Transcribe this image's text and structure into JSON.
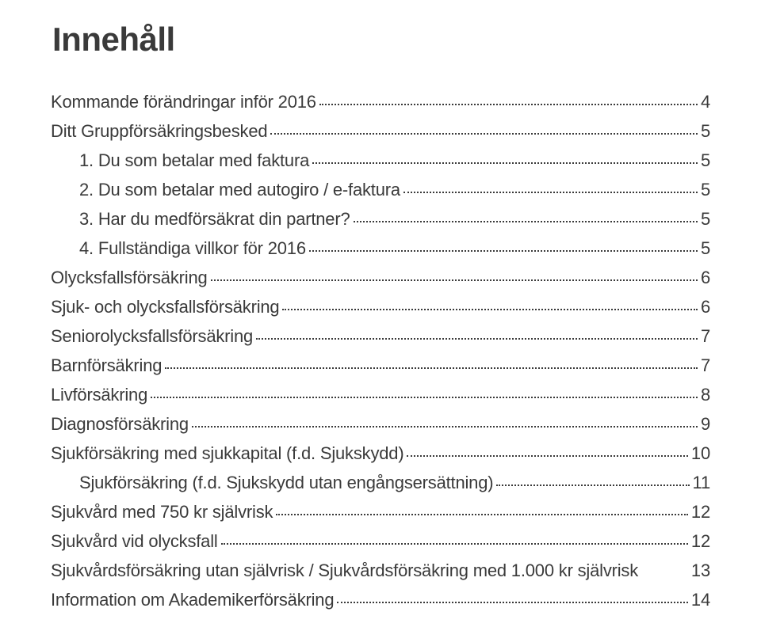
{
  "title": "Innehåll",
  "toc": [
    {
      "label": "Kommande förändringar inför 2016",
      "page": "4",
      "indent": 0,
      "leader": true
    },
    {
      "label": "Ditt Gruppförsäkringsbesked",
      "page": "5",
      "indent": 0,
      "leader": true
    },
    {
      "label": "1. Du som betalar med faktura",
      "page": "5",
      "indent": 1,
      "leader": true
    },
    {
      "label": "2. Du som betalar med autogiro / e-faktura",
      "page": "5",
      "indent": 1,
      "leader": true
    },
    {
      "label": "3. Har du medförsäkrat din partner?",
      "page": "5",
      "indent": 1,
      "leader": true
    },
    {
      "label": "4. Fullständiga villkor för 2016",
      "page": "5",
      "indent": 1,
      "leader": true
    },
    {
      "label": "Olycksfallsförsäkring",
      "page": "6",
      "indent": 0,
      "leader": true
    },
    {
      "label": "Sjuk- och olycksfallsförsäkring",
      "page": "6",
      "indent": 0,
      "leader": true
    },
    {
      "label": "Seniorolycksfallsförsäkring",
      "page": "7",
      "indent": 0,
      "leader": true
    },
    {
      "label": "Barnförsäkring",
      "page": "7",
      "indent": 0,
      "leader": true
    },
    {
      "label": "Livförsäkring",
      "page": "8",
      "indent": 0,
      "leader": true
    },
    {
      "label": "Diagnosförsäkring",
      "page": "9",
      "indent": 0,
      "leader": true
    },
    {
      "label": "Sjukförsäkring med sjukkapital (f.d. Sjukskydd)",
      "page": "10",
      "indent": 0,
      "leader": true
    },
    {
      "label": "Sjukförsäkring (f.d. Sjukskydd utan engångsersättning)",
      "page": "11",
      "indent": 1,
      "leader": true
    },
    {
      "label": "Sjukvård med 750 kr självrisk",
      "page": "12",
      "indent": 0,
      "leader": true
    },
    {
      "label": "Sjukvård vid olycksfall",
      "page": "12",
      "indent": 0,
      "leader": true
    },
    {
      "label": "Sjukvårdsförsäkring utan självrisk / Sjukvårdsförsäkring med 1.000 kr självrisk",
      "page": "13",
      "indent": 0,
      "leader": false
    },
    {
      "label": "Information om Akademikerförsäkring",
      "page": "14",
      "indent": 0,
      "leader": true
    }
  ]
}
